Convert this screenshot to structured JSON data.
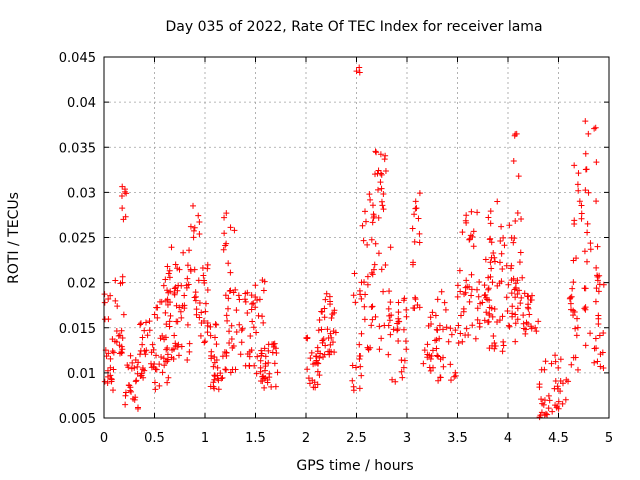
{
  "chart_data": {
    "type": "scatter",
    "title": "Day 035 of 2022, Rate Of TEC Index for receiver lama",
    "xlabel": "GPS time / hours",
    "ylabel": "ROTI / TECUs",
    "xlim": [
      0,
      5
    ],
    "ylim": [
      0.005,
      0.045
    ],
    "grid": true,
    "marker": "+",
    "series_color": "#ff0000",
    "xticks": [
      0,
      0.5,
      1,
      1.5,
      2,
      2.5,
      3,
      3.5,
      4,
      4.5,
      5
    ],
    "xtick_labels": [
      "0",
      "0.5",
      "1",
      "1.5",
      "2",
      "2.5",
      "3",
      "3.5",
      "4",
      "4.5",
      "5"
    ],
    "yticks": [
      0.005,
      0.01,
      0.015,
      0.02,
      0.025,
      0.03,
      0.035,
      0.04,
      0.045
    ],
    "ytick_labels": [
      "0.005",
      "0.01",
      "0.015",
      "0.02",
      "0.025",
      "0.03",
      "0.035",
      "0.04",
      "0.045"
    ],
    "clusters": [
      {
        "x": [
          0.0,
          0.1
        ],
        "y": [
          0.008,
          0.019
        ],
        "n": 22
      },
      {
        "x": [
          0.08,
          0.2
        ],
        "y": [
          0.012,
          0.021
        ],
        "n": 22
      },
      {
        "x": [
          0.15,
          0.22
        ],
        "y": [
          0.027,
          0.031
        ],
        "n": 8
      },
      {
        "x": [
          0.2,
          0.35
        ],
        "y": [
          0.006,
          0.012
        ],
        "n": 25
      },
      {
        "x": [
          0.35,
          0.5
        ],
        "y": [
          0.009,
          0.016
        ],
        "n": 28
      },
      {
        "x": [
          0.5,
          0.65
        ],
        "y": [
          0.008,
          0.02
        ],
        "n": 30
      },
      {
        "x": [
          0.6,
          0.85
        ],
        "y": [
          0.011,
          0.024
        ],
        "n": 60
      },
      {
        "x": [
          0.85,
          0.95
        ],
        "y": [
          0.016,
          0.029
        ],
        "n": 20
      },
      {
        "x": [
          0.95,
          1.05
        ],
        "y": [
          0.013,
          0.022
        ],
        "n": 18
      },
      {
        "x": [
          1.05,
          1.2
        ],
        "y": [
          0.008,
          0.016
        ],
        "n": 30
      },
      {
        "x": [
          1.15,
          1.3
        ],
        "y": [
          0.018,
          0.028
        ],
        "n": 14
      },
      {
        "x": [
          1.2,
          1.45
        ],
        "y": [
          0.01,
          0.019
        ],
        "n": 40
      },
      {
        "x": [
          1.45,
          1.6
        ],
        "y": [
          0.009,
          0.021
        ],
        "n": 28
      },
      {
        "x": [
          1.55,
          1.72
        ],
        "y": [
          0.008,
          0.014
        ],
        "n": 30
      },
      {
        "x": [
          2.0,
          2.15
        ],
        "y": [
          0.008,
          0.014
        ],
        "n": 25
      },
      {
        "x": [
          2.1,
          2.25
        ],
        "y": [
          0.011,
          0.02
        ],
        "n": 22
      },
      {
        "x": [
          2.2,
          2.3
        ],
        "y": [
          0.012,
          0.019
        ],
        "n": 15
      },
      {
        "x": [
          2.45,
          2.55
        ],
        "y": [
          0.008,
          0.023
        ],
        "n": 20
      },
      {
        "x": [
          2.5,
          2.55
        ],
        "y": [
          0.043,
          0.044
        ],
        "n": 3
      },
      {
        "x": [
          2.55,
          2.7
        ],
        "y": [
          0.012,
          0.03
        ],
        "n": 30
      },
      {
        "x": [
          2.65,
          2.8
        ],
        "y": [
          0.027,
          0.035
        ],
        "n": 22
      },
      {
        "x": [
          2.7,
          2.85
        ],
        "y": [
          0.012,
          0.024
        ],
        "n": 18
      },
      {
        "x": [
          2.85,
          3.0
        ],
        "y": [
          0.009,
          0.02
        ],
        "n": 25
      },
      {
        "x": [
          3.05,
          3.15
        ],
        "y": [
          0.017,
          0.032
        ],
        "n": 18
      },
      {
        "x": [
          3.15,
          3.3
        ],
        "y": [
          0.01,
          0.017
        ],
        "n": 22
      },
      {
        "x": [
          3.3,
          3.5
        ],
        "y": [
          0.009,
          0.019
        ],
        "n": 25
      },
      {
        "x": [
          3.5,
          3.7
        ],
        "y": [
          0.013,
          0.028
        ],
        "n": 40
      },
      {
        "x": [
          3.7,
          3.85
        ],
        "y": [
          0.015,
          0.023
        ],
        "n": 25
      },
      {
        "x": [
          3.8,
          3.95
        ],
        "y": [
          0.012,
          0.03
        ],
        "n": 35
      },
      {
        "x": [
          3.95,
          4.1
        ],
        "y": [
          0.013,
          0.027
        ],
        "n": 30
      },
      {
        "x": [
          4.05,
          4.15
        ],
        "y": [
          0.016,
          0.038
        ],
        "n": 18
      },
      {
        "x": [
          4.15,
          4.3
        ],
        "y": [
          0.014,
          0.019
        ],
        "n": 22
      },
      {
        "x": [
          4.3,
          4.45
        ],
        "y": [
          0.005,
          0.012
        ],
        "n": 20
      },
      {
        "x": [
          4.45,
          4.6
        ],
        "y": [
          0.006,
          0.012
        ],
        "n": 20
      },
      {
        "x": [
          4.6,
          4.7
        ],
        "y": [
          0.01,
          0.025
        ],
        "n": 20
      },
      {
        "x": [
          4.65,
          4.8
        ],
        "y": [
          0.026,
          0.034
        ],
        "n": 14
      },
      {
        "x": [
          4.75,
          4.9
        ],
        "y": [
          0.012,
          0.038
        ],
        "n": 25
      },
      {
        "x": [
          4.85,
          4.95
        ],
        "y": [
          0.01,
          0.021
        ],
        "n": 20
      }
    ]
  }
}
